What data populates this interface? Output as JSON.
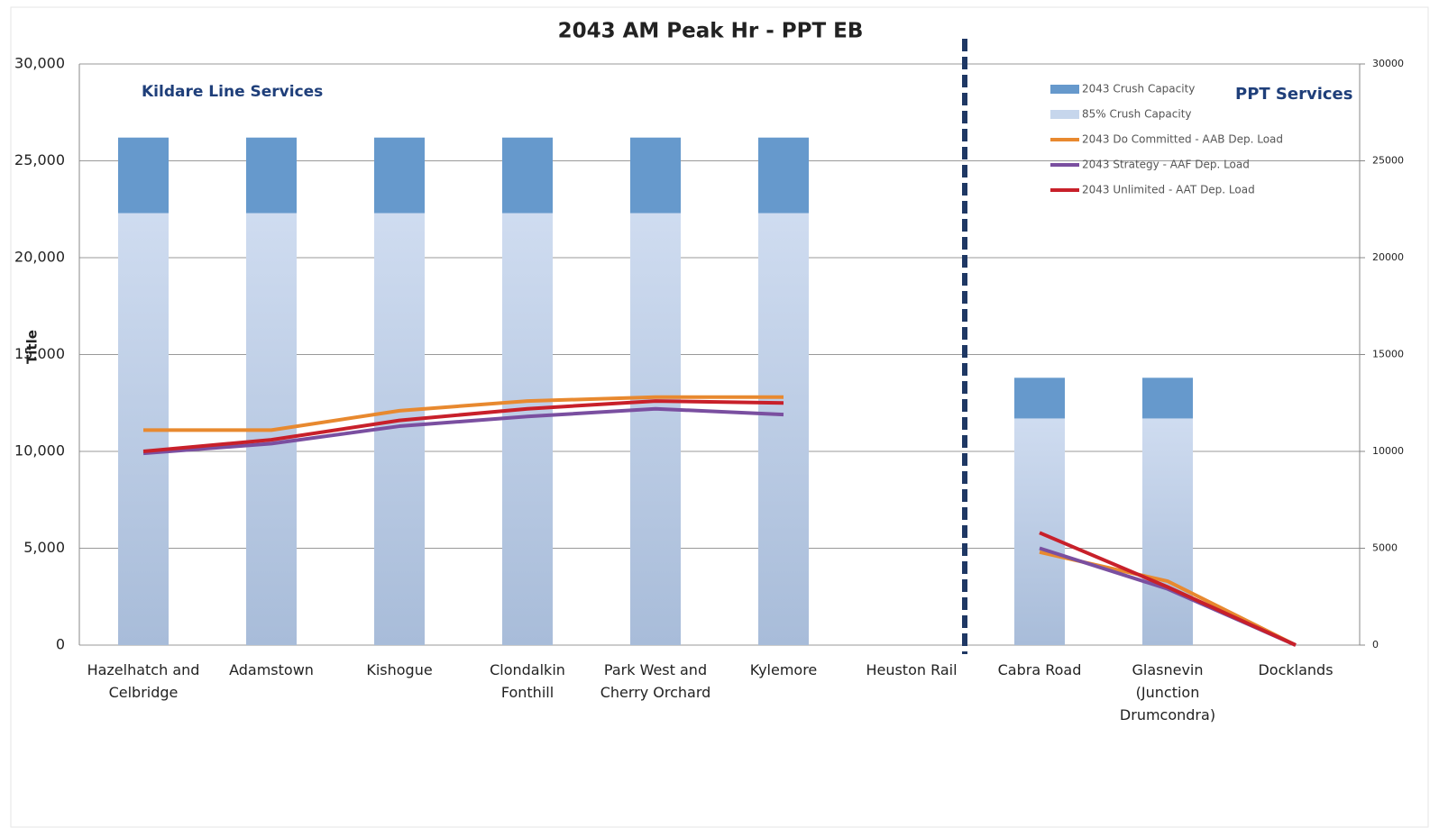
{
  "chart_data": {
    "type": "combo",
    "title": "2043 AM Peak Hr - PPT EB",
    "y_label": "Title",
    "annotations": [
      "Kildare Line Services",
      "PPT Services"
    ],
    "categories": [
      "Hazelhatch and Celbridge",
      "Adamstown",
      "Kishogue",
      "Clondalkin Fonthill",
      "Park West and Cherry Orchard",
      "Kylemore",
      "Heuston Rail",
      "Cabra Road",
      "Glasnevin (Junction Drumcondra)",
      "Docklands"
    ],
    "series": [
      {
        "name": "85% Crush Capacity",
        "kind": "bar",
        "color": "#c6d6ec",
        "values": [
          22300,
          22300,
          22300,
          22300,
          22300,
          22300,
          null,
          11700,
          11700,
          null
        ]
      },
      {
        "name": "2043 Crush Capacity",
        "kind": "bar",
        "color": "#6699cc",
        "values": [
          3900,
          3900,
          3900,
          3900,
          3900,
          3900,
          null,
          2100,
          2100,
          null
        ]
      },
      {
        "name": "2043 Do Committed - AAB Dep. Load",
        "kind": "line",
        "color": "#e8892f",
        "values": [
          11100,
          11100,
          12100,
          12600,
          12800,
          12800,
          null,
          4800,
          3300,
          0
        ]
      },
      {
        "name": "2043 Strategy - AAF Dep. Load",
        "kind": "line",
        "color": "#7a4fa0",
        "values": [
          9900,
          10400,
          11300,
          11800,
          12200,
          11900,
          null,
          5000,
          2900,
          0
        ]
      },
      {
        "name": "2043 Unlimited - AAT Dep. Load",
        "kind": "line",
        "color": "#c8202a",
        "values": [
          10000,
          10600,
          11600,
          12200,
          12600,
          12500,
          null,
          5800,
          3000,
          0
        ]
      }
    ],
    "ylim": [
      0,
      30000
    ],
    "yticks": [
      0,
      {
        "value": 5000,
        "label": "5,000"
      },
      {
        "value": 10000,
        "label": "10,000"
      },
      {
        "value": 15000,
        "label": "15,000"
      },
      {
        "value": 20000,
        "label": "20,000"
      },
      {
        "value": 25000,
        "label": "25,000"
      },
      {
        "value": 30000,
        "label": "30,000"
      }
    ],
    "y2lim": [
      0,
      30000
    ],
    "y2ticks": [
      0,
      5000,
      10000,
      15000,
      20000,
      25000,
      30000
    ],
    "grid": true
  }
}
